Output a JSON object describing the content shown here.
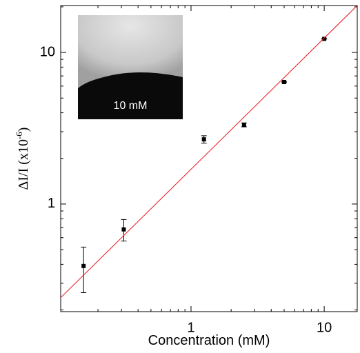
{
  "chart_data": {
    "type": "scatter",
    "xlabel": "Concentration (mM)",
    "ylabel": {
      "text": "ΔI/I (x10",
      "sup": "-6",
      "end": ")"
    },
    "xlog": true,
    "ylog": true,
    "xlim": [
      0.105,
      17.7
    ],
    "ylim": [
      0.195,
      20.4
    ],
    "xticks": [
      1,
      10
    ],
    "yticks": [
      1,
      10
    ],
    "xminorticks": [
      0.2,
      0.3,
      0.4,
      0.5,
      0.6,
      0.7,
      0.8,
      0.9,
      2,
      3,
      4,
      5,
      6,
      7,
      8,
      9
    ],
    "yminorticks": [
      0.2,
      0.3,
      0.4,
      0.5,
      0.6,
      0.7,
      0.8,
      0.9,
      2,
      3,
      4,
      5,
      6,
      7,
      8,
      9,
      20
    ],
    "series": [
      {
        "color": "#000000",
        "x": [
          0.156,
          0.3125,
          1.25,
          2.5,
          5,
          10
        ],
        "values": [
          0.39,
          0.68,
          2.67,
          3.33,
          6.38,
          12.3
        ],
        "errors": [
          0.13,
          0.11,
          0.15,
          0.1,
          0.05,
          0.05
        ]
      },
      {
        "type": "line",
        "color": "#e8131b",
        "x": [
          0.105,
          17.7
        ],
        "values": [
          0.241,
          20.4
        ]
      }
    ],
    "inset": {
      "label": "10 mM"
    }
  }
}
